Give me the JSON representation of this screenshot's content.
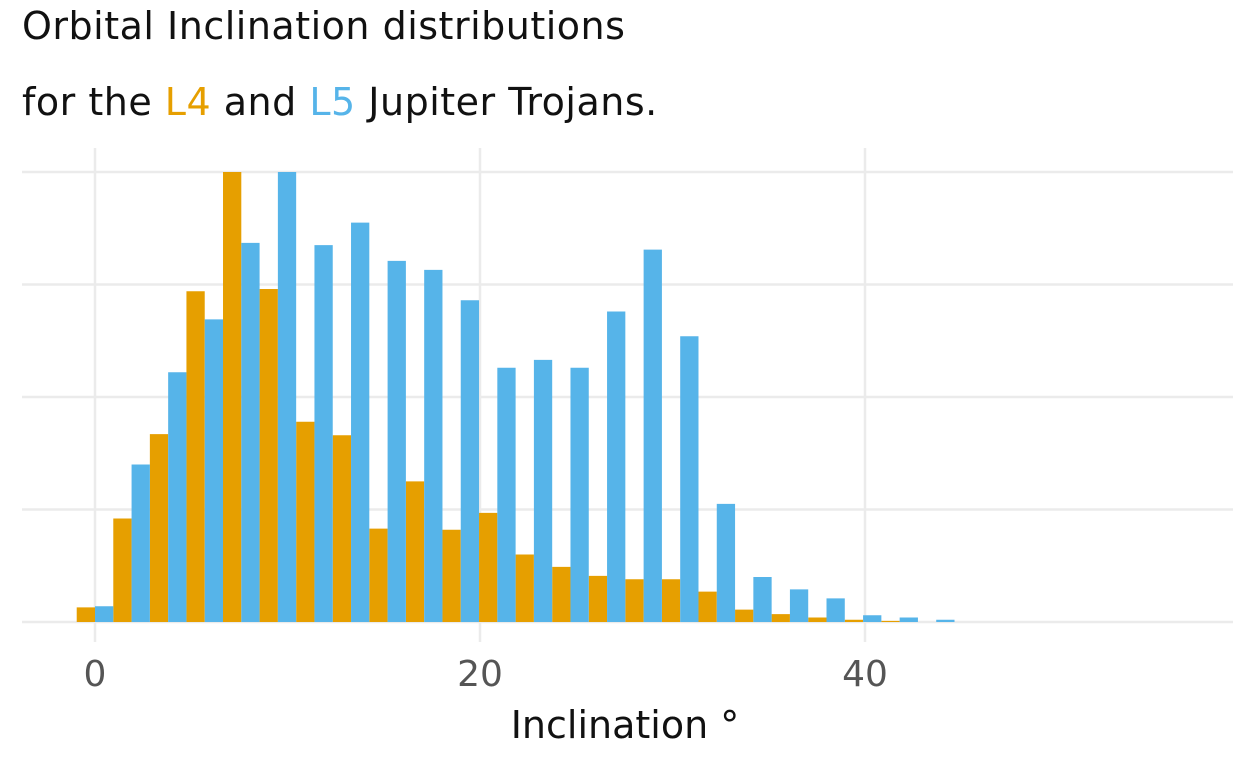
{
  "title": {
    "line1": "Orbital Inclination distributions",
    "line2_prefix": "for the",
    "l4_label": "L4",
    "connector": "and",
    "l5_label": "L5",
    "line2_suffix": "Jupiter Trojans."
  },
  "colors": {
    "l4": "#E69F00",
    "l5": "#56B4E9",
    "grid": "#EBEBEB",
    "tick_text": "#555555",
    "text": "#111111"
  },
  "chart_data": {
    "type": "bar",
    "xlabel": "Inclination °",
    "ylabel": "",
    "x_ticks": [
      0,
      20,
      40
    ],
    "xlim": [
      -3.8,
      59.3
    ],
    "ylim": [
      0,
      400
    ],
    "y_grid": [
      0,
      100,
      200,
      300,
      400
    ],
    "y_tick_labels_shown": false,
    "grid": true,
    "legend": "none (series named by title colors)",
    "bin_width": 1.9,
    "bin_centers": [
      0,
      1.9,
      3.8,
      5.7,
      7.6,
      9.5,
      11.4,
      13.3,
      15.2,
      17.1,
      19.0,
      20.9,
      22.8,
      24.7,
      26.6,
      28.5,
      30.4,
      32.3,
      34.2,
      36.1,
      38.0,
      39.9,
      41.8,
      43.7
    ],
    "series": [
      {
        "name": "L4",
        "values": [
          13,
          92,
          167,
          294,
          400,
          296,
          178,
          166,
          83,
          125,
          82,
          97,
          60,
          49,
          41,
          38,
          38,
          27,
          11,
          7,
          4,
          2,
          1,
          0
        ]
      },
      {
        "name": "L5",
        "values": [
          14,
          140,
          222,
          269,
          337,
          400,
          335,
          355,
          321,
          313,
          286,
          226,
          233,
          226,
          276,
          331,
          254,
          105,
          40,
          29,
          21,
          6,
          4,
          2
        ]
      }
    ]
  }
}
